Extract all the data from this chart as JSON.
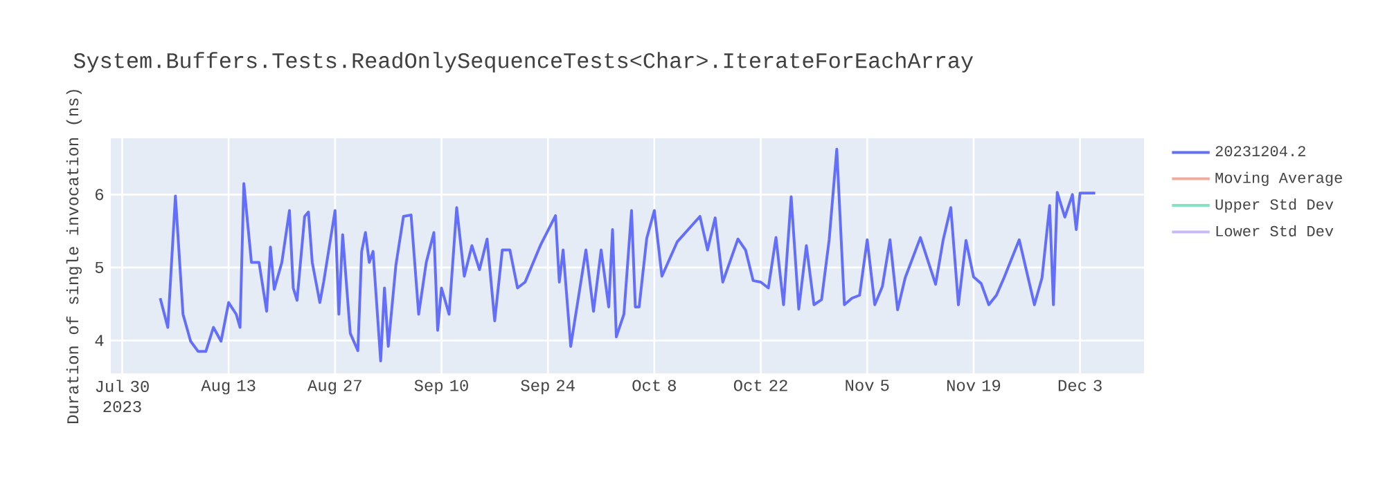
{
  "chart_data": {
    "type": "line",
    "title": "System.Buffers.Tests.ReadOnlySequenceTests<Char>.IterateForEachArray",
    "ylabel": "Duration of single invocation (ns)",
    "x": [
      "2023-08-04",
      "2023-08-05",
      "2023-08-06",
      "2023-08-07",
      "2023-08-08",
      "2023-08-09",
      "2023-08-10",
      "2023-08-11",
      "2023-08-12",
      "2023-08-13",
      "2023-08-14",
      "2023-08-14T12:00",
      "2023-08-15",
      "2023-08-16",
      "2023-08-17",
      "2023-08-18",
      "2023-08-18T12:00",
      "2023-08-19",
      "2023-08-20",
      "2023-08-21",
      "2023-08-21T12:00",
      "2023-08-22",
      "2023-08-23",
      "2023-08-23T12:00",
      "2023-08-24",
      "2023-08-25",
      "2023-08-25T12:00",
      "2023-08-27",
      "2023-08-27T12:00",
      "2023-08-28",
      "2023-08-29",
      "2023-08-30",
      "2023-08-30T12:00",
      "2023-08-31",
      "2023-08-31T12:00",
      "2023-09-01",
      "2023-09-02",
      "2023-09-02T12:00",
      "2023-09-03",
      "2023-09-04",
      "2023-09-05",
      "2023-09-06",
      "2023-09-07",
      "2023-09-08",
      "2023-09-09",
      "2023-09-09T12:00",
      "2023-09-10",
      "2023-09-11",
      "2023-09-12",
      "2023-09-13",
      "2023-09-14",
      "2023-09-15",
      "2023-09-16",
      "2023-09-17",
      "2023-09-18",
      "2023-09-19",
      "2023-09-20",
      "2023-09-21",
      "2023-09-23",
      "2023-09-25",
      "2023-09-25T12:00",
      "2023-09-26",
      "2023-09-27",
      "2023-09-29",
      "2023-09-30",
      "2023-10-01",
      "2023-10-02",
      "2023-10-02T12:00",
      "2023-10-03",
      "2023-10-04",
      "2023-10-05",
      "2023-10-05T12:00",
      "2023-10-06",
      "2023-10-07",
      "2023-10-08",
      "2023-10-09",
      "2023-10-11",
      "2023-10-14",
      "2023-10-15",
      "2023-10-16",
      "2023-10-17",
      "2023-10-19",
      "2023-10-20",
      "2023-10-21",
      "2023-10-22",
      "2023-10-23",
      "2023-10-24",
      "2023-10-25",
      "2023-10-26",
      "2023-10-27",
      "2023-10-28",
      "2023-10-29",
      "2023-10-30",
      "2023-10-31",
      "2023-11-01",
      "2023-11-02",
      "2023-11-03",
      "2023-11-04",
      "2023-11-05",
      "2023-11-06",
      "2023-11-07",
      "2023-11-08",
      "2023-11-09",
      "2023-11-10",
      "2023-11-12",
      "2023-11-14",
      "2023-11-15",
      "2023-11-16",
      "2023-11-17",
      "2023-11-18",
      "2023-11-19",
      "2023-11-20",
      "2023-11-21",
      "2023-11-22",
      "2023-11-23",
      "2023-11-25",
      "2023-11-27",
      "2023-11-28",
      "2023-11-29",
      "2023-11-29T12:00",
      "2023-11-30",
      "2023-12-01",
      "2023-12-02",
      "2023-12-02T12:00",
      "2023-12-03",
      "2023-12-05"
    ],
    "series": [
      {
        "name": "20231204.2",
        "color": "#636efa",
        "values": [
          4.58,
          4.18,
          5.98,
          4.36,
          3.99,
          3.85,
          3.85,
          4.18,
          3.99,
          4.52,
          4.36,
          4.18,
          6.15,
          5.07,
          5.07,
          4.4,
          5.28,
          4.7,
          5.07,
          5.78,
          4.72,
          4.55,
          5.7,
          5.76,
          5.07,
          4.52,
          4.8,
          5.78,
          4.36,
          5.45,
          4.1,
          3.86,
          5.22,
          5.48,
          5.07,
          5.22,
          3.72,
          4.72,
          3.92,
          5.03,
          5.7,
          5.72,
          4.36,
          5.07,
          5.48,
          4.14,
          4.72,
          4.36,
          5.82,
          4.88,
          5.3,
          4.97,
          5.39,
          4.27,
          5.24,
          5.24,
          4.72,
          4.8,
          5.3,
          5.71,
          4.8,
          5.24,
          3.92,
          5.24,
          4.4,
          5.24,
          4.46,
          5.52,
          4.05,
          4.36,
          5.78,
          4.46,
          4.46,
          5.4,
          5.78,
          4.88,
          5.35,
          5.7,
          5.24,
          5.68,
          4.8,
          5.39,
          5.24,
          4.82,
          4.8,
          4.72,
          5.41,
          4.49,
          5.97,
          4.43,
          5.3,
          4.49,
          4.56,
          5.38,
          6.62,
          4.49,
          4.58,
          4.62,
          5.38,
          4.49,
          4.74,
          5.38,
          4.42,
          4.86,
          5.41,
          4.77,
          5.38,
          5.82,
          4.49,
          5.37,
          4.87,
          4.78,
          4.49,
          4.62,
          4.86,
          5.38,
          4.49,
          4.86,
          5.85,
          4.49,
          6.03,
          5.69,
          6.0,
          5.52,
          6.02,
          6.02
        ]
      },
      {
        "name": "Moving Average",
        "color": "#f4a99b",
        "values": [
          null,
          null,
          null,
          null,
          null,
          null,
          null,
          null,
          null,
          null,
          null,
          null,
          null,
          null,
          null,
          null,
          null,
          null,
          null,
          null,
          null,
          null,
          null,
          null,
          null,
          null,
          null,
          null,
          null,
          null,
          null,
          null,
          null,
          null,
          null,
          null,
          null,
          null,
          null,
          null,
          null,
          null,
          null,
          null,
          null,
          null,
          null,
          null,
          null,
          null,
          null,
          null,
          null,
          null,
          null,
          null,
          null,
          null,
          null,
          null,
          null,
          null,
          null,
          null,
          null,
          null,
          null,
          null,
          null,
          null,
          null,
          null,
          null,
          null,
          null,
          null,
          null,
          null,
          null,
          null,
          null,
          null,
          null,
          null,
          null,
          null,
          null,
          null,
          null,
          null,
          null,
          null,
          null,
          null,
          null,
          null,
          null,
          null,
          null,
          null,
          null,
          null,
          null,
          null,
          null,
          null,
          null,
          null,
          null,
          null,
          null,
          null,
          null,
          null,
          null,
          null,
          null,
          null,
          null,
          null,
          null,
          null,
          null,
          null,
          null,
          null
        ]
      },
      {
        "name": "Upper Std Dev",
        "color": "#7fe3c4",
        "values": [
          null,
          null,
          null,
          null,
          null,
          null,
          null,
          null,
          null,
          null,
          null,
          null,
          null,
          null,
          null,
          null,
          null,
          null,
          null,
          null,
          null,
          null,
          null,
          null,
          null,
          null,
          null,
          null,
          null,
          null,
          null,
          null,
          null,
          null,
          null,
          null,
          null,
          null,
          null,
          null,
          null,
          null,
          null,
          null,
          null,
          null,
          null,
          null,
          null,
          null,
          null,
          null,
          null,
          null,
          null,
          null,
          null,
          null,
          null,
          null,
          null,
          null,
          null,
          null,
          null,
          null,
          null,
          null,
          null,
          null,
          null,
          null,
          null,
          null,
          null,
          null,
          null,
          null,
          null,
          null,
          null,
          null,
          null,
          null,
          null,
          null,
          null,
          null,
          null,
          null,
          null,
          null,
          null,
          null,
          null,
          null,
          null,
          null,
          null,
          null,
          null,
          null,
          null,
          null,
          null,
          null,
          null,
          null,
          null,
          null,
          null,
          null,
          null,
          null,
          null,
          null,
          null,
          null,
          null,
          null,
          null,
          null,
          null,
          null,
          null,
          null
        ]
      },
      {
        "name": "Lower Std Dev",
        "color": "#cbb8f6",
        "values": [
          null,
          null,
          null,
          null,
          null,
          null,
          null,
          null,
          null,
          null,
          null,
          null,
          null,
          null,
          null,
          null,
          null,
          null,
          null,
          null,
          null,
          null,
          null,
          null,
          null,
          null,
          null,
          null,
          null,
          null,
          null,
          null,
          null,
          null,
          null,
          null,
          null,
          null,
          null,
          null,
          null,
          null,
          null,
          null,
          null,
          null,
          null,
          null,
          null,
          null,
          null,
          null,
          null,
          null,
          null,
          null,
          null,
          null,
          null,
          null,
          null,
          null,
          null,
          null,
          null,
          null,
          null,
          null,
          null,
          null,
          null,
          null,
          null,
          null,
          null,
          null,
          null,
          null,
          null,
          null,
          null,
          null,
          null,
          null,
          null,
          null,
          null,
          null,
          null,
          null,
          null,
          null,
          null,
          null,
          null,
          null,
          null,
          null,
          null,
          null,
          null,
          null,
          null,
          null,
          null,
          null,
          null,
          null,
          null,
          null,
          null,
          null,
          null,
          null,
          null,
          null,
          null,
          null,
          null,
          null,
          null,
          null,
          null,
          null,
          null,
          null
        ]
      }
    ],
    "xlim": [
      "2023-07-28T12:00",
      "2023-12-11T10:00"
    ],
    "xticks": [
      {
        "value": "2023-07-30",
        "label": "Jul 30 2023"
      },
      {
        "value": "2023-08-13",
        "label": "Aug 13"
      },
      {
        "value": "2023-08-27",
        "label": "Aug 27"
      },
      {
        "value": "2023-09-10",
        "label": "Sep 10"
      },
      {
        "value": "2023-09-24",
        "label": "Sep 24"
      },
      {
        "value": "2023-10-08",
        "label": "Oct 8"
      },
      {
        "value": "2023-10-22",
        "label": "Oct 22"
      },
      {
        "value": "2023-11-05",
        "label": "Nov 5"
      },
      {
        "value": "2023-11-19",
        "label": "Nov 19"
      },
      {
        "value": "2023-12-03",
        "label": "Dec 3"
      }
    ],
    "ylim": [
      3.55,
      6.77
    ],
    "yticks": [
      4,
      5,
      6
    ],
    "grid": true,
    "legend": "top right"
  }
}
